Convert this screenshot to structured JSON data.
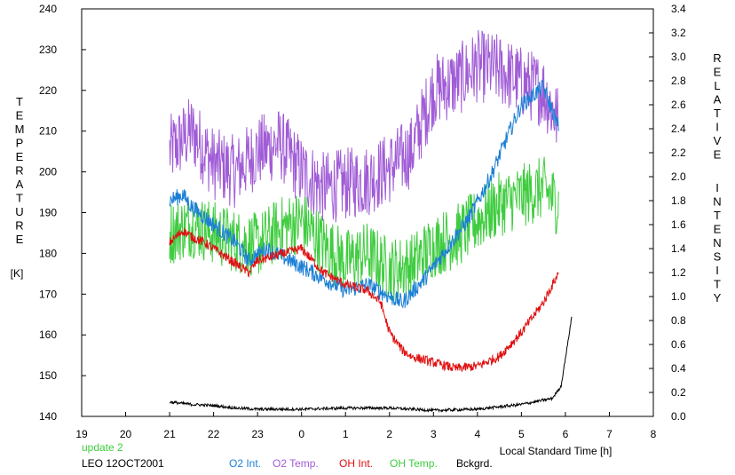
{
  "chart_data": {
    "type": "line",
    "left_axis": {
      "label_letters": [
        "T",
        "E",
        "M",
        "P",
        "E",
        "R",
        "A",
        "T",
        "U",
        "R",
        "E"
      ],
      "unit": "[K]",
      "range": [
        140,
        240
      ],
      "ticks": [
        "140",
        "150",
        "160",
        "170",
        "180",
        "190",
        "200",
        "210",
        "220",
        "230",
        "240"
      ]
    },
    "right_axis": {
      "label_letters_1": [
        "R",
        "E",
        "L",
        "A",
        "T",
        "I",
        "V",
        "E"
      ],
      "label_letters_2": [
        "I",
        "N",
        "T",
        "E",
        "N",
        "S",
        "I",
        "T",
        "Y"
      ],
      "range": [
        0.0,
        3.4
      ],
      "ticks": [
        "0.0",
        "0.2",
        "0.4",
        "0.6",
        "0.8",
        "1.0",
        "1.2",
        "1.4",
        "1.6",
        "1.8",
        "2.0",
        "2.2",
        "2.4",
        "2.6",
        "2.8",
        "3.0",
        "3.2",
        "3.4"
      ]
    },
    "x_axis": {
      "label": "Local Standard Time [h]",
      "range_hours_since_19": [
        0,
        13
      ],
      "ticks": [
        "19",
        "20",
        "21",
        "22",
        "23",
        "0",
        "1",
        "2",
        "3",
        "4",
        "5",
        "6",
        "7",
        "8"
      ]
    },
    "status": "update 2",
    "station": "LEO 12OCT2001",
    "legend": [
      {
        "label": "O2 Int.",
        "color": "#1b7fd6"
      },
      {
        "label": "O2 Temp.",
        "color": "#a05cd6"
      },
      {
        "label": "OH Int.",
        "color": "#e01010"
      },
      {
        "label": "OH Temp.",
        "color": "#3fcc3f"
      },
      {
        "label": "Bckgrd.",
        "color": "#000000"
      }
    ],
    "series": [
      {
        "name": "O2 Temp.",
        "color": "#a05cd6",
        "axis": "left",
        "noise": 9,
        "x": [
          21.0,
          21.5,
          22.0,
          22.5,
          23.0,
          23.5,
          24.0,
          24.5,
          25.0,
          25.5,
          26.0,
          26.5,
          27.0,
          27.5,
          28.0,
          28.5,
          29.0,
          29.5,
          29.85
        ],
        "y": [
          205,
          210,
          202,
          200,
          205,
          207,
          200,
          196,
          197,
          198,
          201,
          205,
          220,
          222,
          226,
          225,
          222,
          220,
          212
        ]
      },
      {
        "name": "OH Temp.",
        "color": "#3fcc3f",
        "axis": "left",
        "noise": 8,
        "x": [
          21.0,
          21.5,
          22.0,
          22.5,
          23.0,
          23.5,
          24.0,
          24.5,
          25.0,
          25.5,
          26.0,
          26.5,
          27.0,
          27.5,
          28.0,
          28.5,
          29.0,
          29.5,
          29.85
        ],
        "y": [
          185,
          187,
          185,
          183,
          182,
          186,
          188,
          182,
          178,
          180,
          176,
          177,
          182,
          184,
          188,
          192,
          194,
          196,
          192
        ]
      },
      {
        "name": "O2 Int.",
        "color": "#1b7fd6",
        "axis": "right",
        "noise": 0.07,
        "x": [
          21.0,
          21.3,
          21.5,
          22.0,
          22.5,
          22.8,
          23.0,
          23.2,
          24.0,
          24.5,
          25.0,
          25.5,
          26.0,
          26.3,
          26.8,
          27.3,
          27.8,
          28.3,
          28.7,
          29.0,
          29.5,
          29.85
        ],
        "y": [
          1.8,
          1.85,
          1.75,
          1.6,
          1.45,
          1.3,
          1.35,
          1.4,
          1.25,
          1.15,
          1.05,
          1.1,
          1.0,
          0.95,
          1.15,
          1.4,
          1.65,
          2.0,
          2.35,
          2.6,
          2.75,
          2.4
        ]
      },
      {
        "name": "OH Int.",
        "color": "#e01010",
        "axis": "right",
        "noise": 0.04,
        "x": [
          21.0,
          21.3,
          21.5,
          21.8,
          22.0,
          22.4,
          22.6,
          22.8,
          23.0,
          23.2,
          24.0,
          24.5,
          25.0,
          25.5,
          25.8,
          26.0,
          26.3,
          26.5,
          27.0,
          27.5,
          28.0,
          28.5,
          29.0,
          29.5,
          29.85
        ],
        "y": [
          1.45,
          1.55,
          1.5,
          1.45,
          1.4,
          1.3,
          1.25,
          1.2,
          1.3,
          1.32,
          1.4,
          1.2,
          1.1,
          1.05,
          0.95,
          0.7,
          0.55,
          0.5,
          0.45,
          0.4,
          0.42,
          0.5,
          0.7,
          0.95,
          1.2
        ]
      },
      {
        "name": "Bckgrd.",
        "color": "#000000",
        "axis": "right",
        "noise": 0.012,
        "x": [
          21.0,
          21.5,
          22.0,
          22.5,
          23.0,
          24.0,
          25.0,
          26.0,
          27.0,
          28.0,
          29.0,
          29.7,
          29.9,
          30.05,
          30.15
        ],
        "y": [
          0.12,
          0.1,
          0.09,
          0.07,
          0.06,
          0.06,
          0.07,
          0.07,
          0.05,
          0.06,
          0.1,
          0.15,
          0.25,
          0.6,
          0.85
        ]
      }
    ]
  }
}
